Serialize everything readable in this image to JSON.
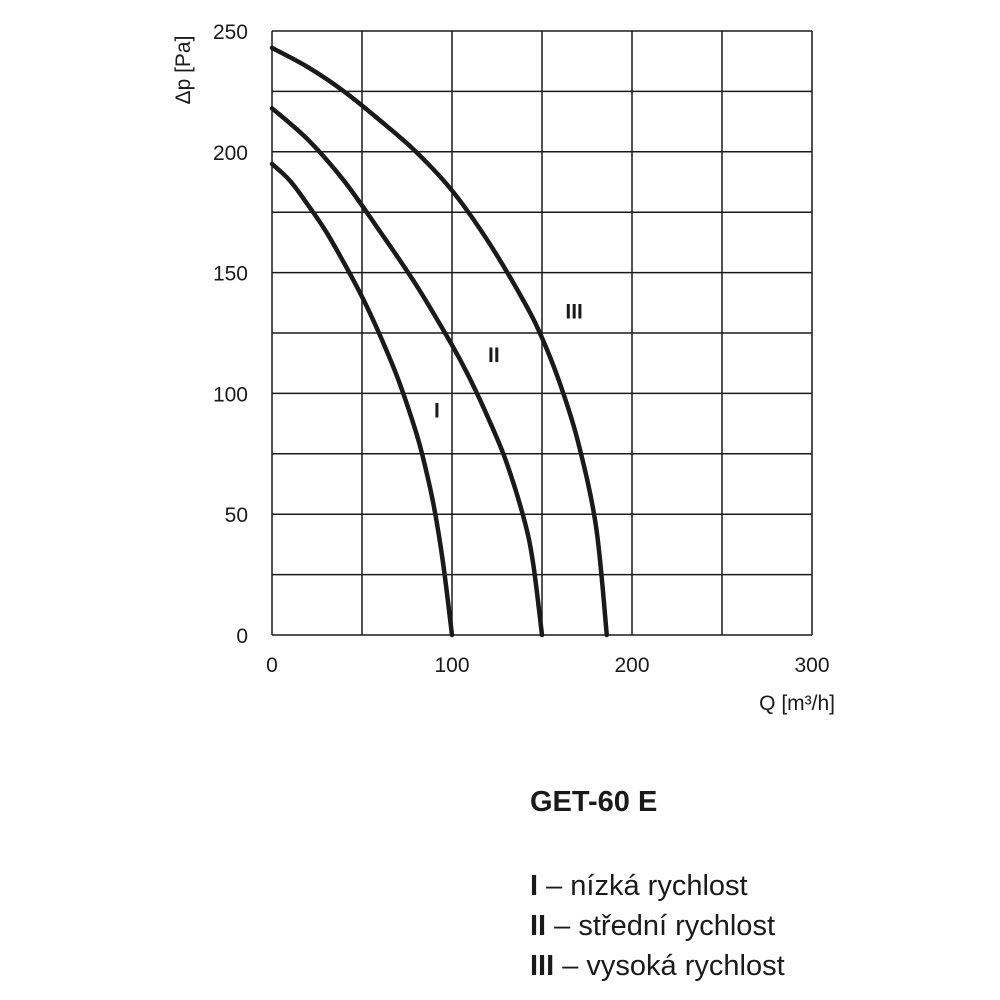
{
  "chart_data": {
    "type": "line",
    "xlabel": "Q [m³/h]",
    "ylabel": "Δp [Pa]",
    "xlim": [
      0,
      300
    ],
    "ylim": [
      0,
      250
    ],
    "xticks": [
      0,
      100,
      200,
      300
    ],
    "yticks": [
      0,
      50,
      100,
      150,
      200,
      250
    ],
    "grid": true,
    "line_color": "#1a1a1a",
    "series": [
      {
        "name": "I",
        "label": "I",
        "label_at": [
          90,
          90
        ],
        "x": [
          0,
          10,
          20,
          30,
          40,
          50,
          60,
          70,
          80,
          85,
          90,
          95,
          100
        ],
        "y": [
          195,
          188,
          178,
          167,
          154,
          140,
          124,
          106,
          84,
          70,
          53,
          30,
          0
        ]
      },
      {
        "name": "II",
        "label": "II",
        "label_at": [
          120,
          113
        ],
        "x": [
          0,
          20,
          40,
          60,
          80,
          100,
          110,
          120,
          130,
          140,
          145,
          150
        ],
        "y": [
          218,
          205,
          188,
          167,
          145,
          120,
          106,
          90,
          72,
          48,
          30,
          0
        ]
      },
      {
        "name": "III",
        "label": "III",
        "label_at": [
          163,
          131
        ],
        "x": [
          0,
          20,
          40,
          60,
          80,
          100,
          120,
          140,
          150,
          160,
          170,
          180,
          186
        ],
        "y": [
          243,
          235,
          225,
          213,
          200,
          184,
          163,
          138,
          123,
          104,
          80,
          45,
          0
        ]
      }
    ]
  },
  "model": "GET-60 E",
  "legend": [
    {
      "code": "I",
      "text": " – nízká rychlost"
    },
    {
      "code": "II",
      "text": " – střední rychlost"
    },
    {
      "code": "III",
      "text": " – vysoká rychlost"
    }
  ]
}
